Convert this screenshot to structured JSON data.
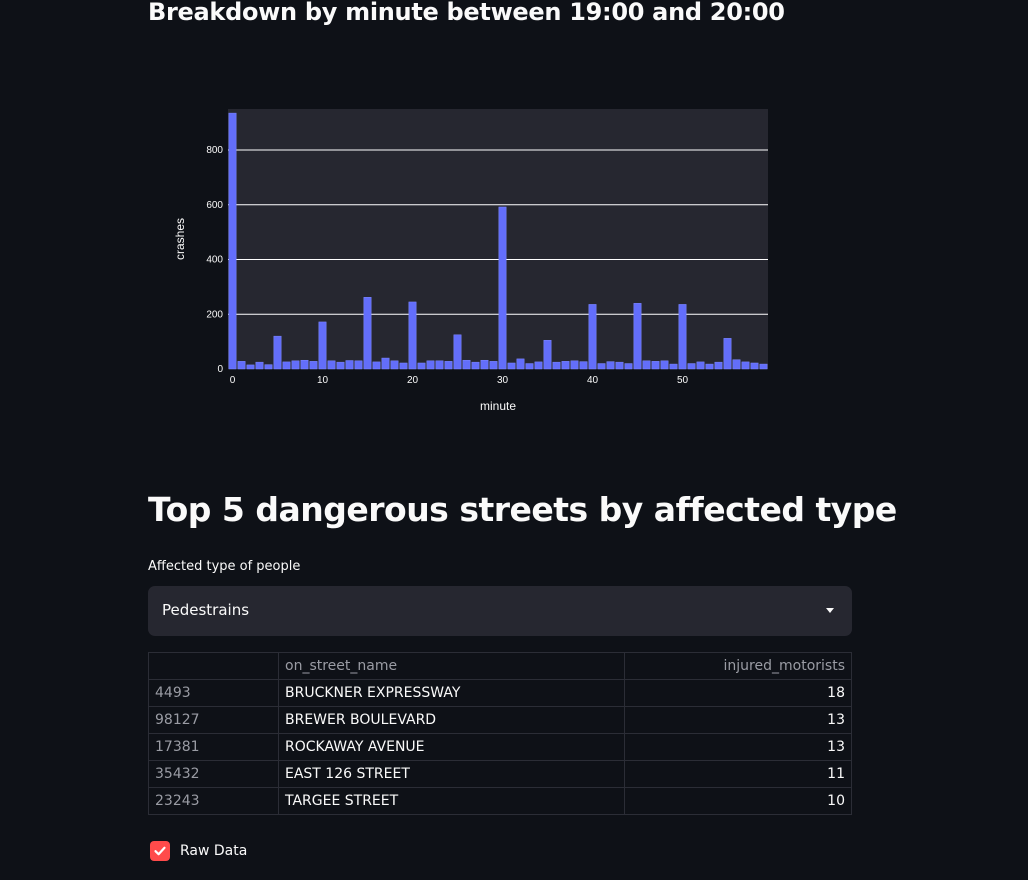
{
  "minute_section": {
    "title": "Breakdown by minute between 19:00 and 20:00"
  },
  "chart_data": {
    "type": "bar",
    "title": "",
    "xlabel": "minute",
    "ylabel": "crashes",
    "xlim": [
      -0.5,
      59.5
    ],
    "ylim": [
      0,
      950
    ],
    "x_ticks": [
      0,
      10,
      20,
      30,
      40,
      50
    ],
    "y_ticks": [
      0,
      200,
      400,
      600,
      800
    ],
    "grid": true,
    "bar_color": "#636efa",
    "plot_bg": "#262730",
    "x": [
      0,
      1,
      2,
      3,
      4,
      5,
      6,
      7,
      8,
      9,
      10,
      11,
      12,
      13,
      14,
      15,
      16,
      17,
      18,
      19,
      20,
      21,
      22,
      23,
      24,
      25,
      26,
      27,
      28,
      29,
      30,
      31,
      32,
      33,
      34,
      35,
      36,
      37,
      38,
      39,
      40,
      41,
      42,
      43,
      44,
      45,
      46,
      47,
      48,
      49,
      50,
      51,
      52,
      53,
      54,
      55,
      56,
      57,
      58,
      59
    ],
    "values": [
      935,
      28,
      15,
      25,
      16,
      120,
      26,
      30,
      32,
      28,
      172,
      30,
      25,
      31,
      30,
      262,
      26,
      40,
      30,
      22,
      245,
      22,
      30,
      30,
      28,
      125,
      32,
      25,
      32,
      28,
      592,
      22,
      37,
      20,
      26,
      105,
      25,
      28,
      30,
      27,
      236,
      20,
      27,
      25,
      20,
      240,
      30,
      28,
      30,
      18,
      236,
      20,
      26,
      18,
      25,
      112,
      34,
      26,
      22,
      18
    ]
  },
  "streets_section": {
    "title": "Top 5 dangerous streets by affected type",
    "select_label": "Affected type of people",
    "select_value": "Pedestrains"
  },
  "table": {
    "columns": [
      "",
      "on_street_name",
      "injured_motorists"
    ],
    "rows": [
      {
        "index": "4493",
        "street": "BRUCKNER EXPRESSWAY",
        "injured": "18"
      },
      {
        "index": "98127",
        "street": "BREWER BOULEVARD",
        "injured": "13"
      },
      {
        "index": "17381",
        "street": "ROCKAWAY AVENUE",
        "injured": "13"
      },
      {
        "index": "35432",
        "street": "EAST 126 STREET",
        "injured": "11"
      },
      {
        "index": "23243",
        "street": "TARGEE STREET",
        "injured": "10"
      }
    ]
  },
  "raw_data_checkbox": {
    "label": "Raw Data",
    "checked": true
  }
}
